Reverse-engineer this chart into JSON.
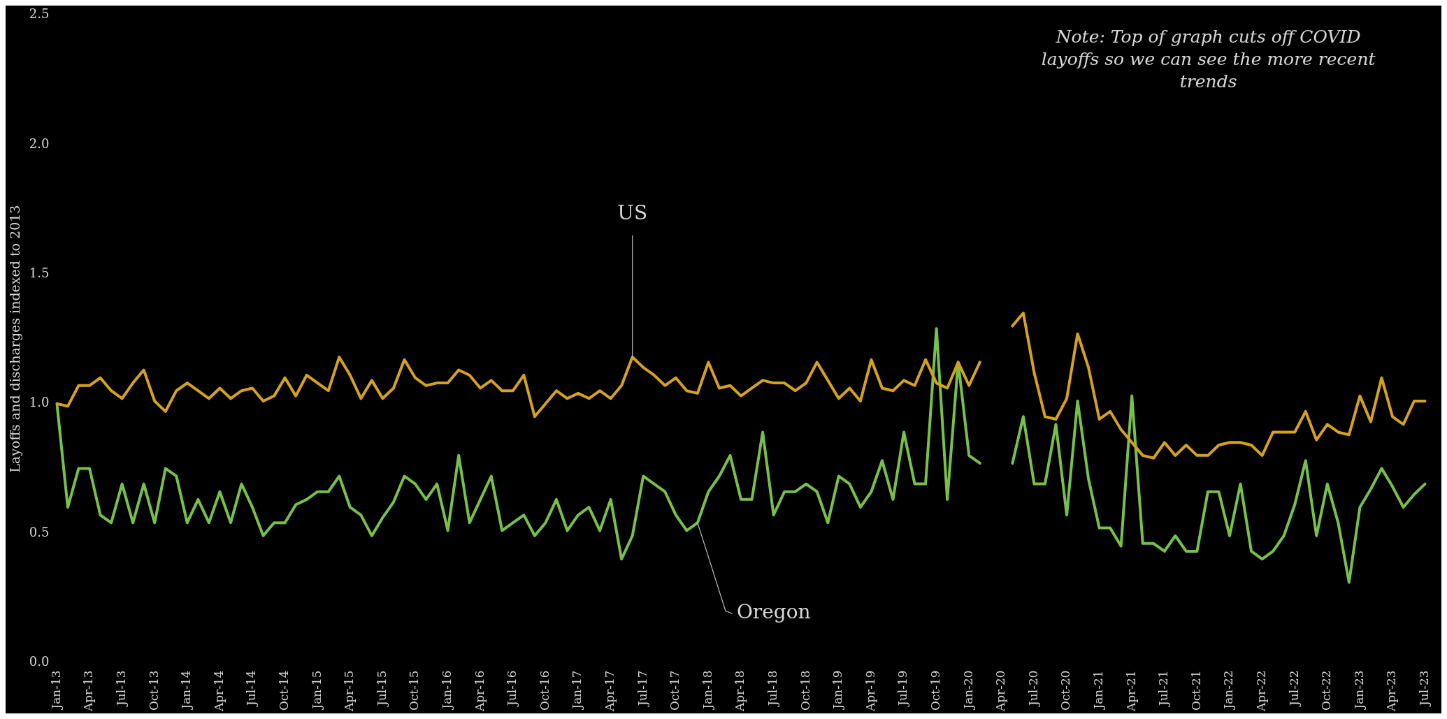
{
  "chart_data": {
    "type": "line",
    "ylabel": "Layoffs and discharges indexed to 2013",
    "annotations": [
      "Note: Top of graph cuts off COVID layoffs so we can see the more recent trends"
    ],
    "categories": [
      "Jan-13",
      null,
      null,
      "Apr-13",
      null,
      null,
      "Jul-13",
      null,
      null,
      "Oct-13",
      null,
      null,
      "Jan-14",
      null,
      null,
      "Apr-14",
      null,
      null,
      "Jul-14",
      null,
      null,
      "Oct-14",
      null,
      null,
      "Jan-15",
      null,
      null,
      "Apr-15",
      null,
      null,
      "Jul-15",
      null,
      null,
      "Oct-15",
      null,
      null,
      "Jan-16",
      null,
      null,
      "Apr-16",
      null,
      null,
      "Jul-16",
      null,
      null,
      "Oct-16",
      null,
      null,
      "Jan-17",
      null,
      null,
      "Apr-17",
      null,
      null,
      "Jul-17",
      null,
      null,
      "Oct-17",
      null,
      null,
      "Jan-18",
      null,
      null,
      "Apr-18",
      null,
      null,
      "Jul-18",
      null,
      null,
      "Oct-18",
      null,
      null,
      "Jan-19",
      null,
      null,
      "Apr-19",
      null,
      null,
      "Jul-19",
      null,
      null,
      "Oct-19",
      null,
      null,
      "Jan-20",
      null,
      null,
      "Apr-20",
      null,
      null,
      "Jul-20",
      null,
      null,
      "Oct-20",
      null,
      null,
      "Jan-21",
      null,
      null,
      "Apr-21",
      null,
      null,
      "Jul-21",
      null,
      null,
      "Oct-21",
      null,
      null,
      "Jan-22",
      null,
      null,
      "Apr-22",
      null,
      null,
      "Jul-22",
      null,
      null,
      "Oct-22",
      null,
      null,
      "Jan-23",
      null,
      null,
      "Apr-23",
      null,
      null,
      "Jul-23"
    ],
    "series": [
      {
        "name": "US",
        "color": "#d6a21e",
        "values": [
          1.0,
          0.99,
          1.07,
          1.07,
          1.1,
          1.05,
          1.02,
          1.08,
          1.13,
          1.01,
          0.97,
          1.05,
          1.08,
          1.05,
          1.02,
          1.06,
          1.02,
          1.05,
          1.06,
          1.01,
          1.03,
          1.1,
          1.03,
          1.11,
          1.08,
          1.05,
          1.18,
          1.11,
          1.02,
          1.09,
          1.02,
          1.06,
          1.17,
          1.1,
          1.07,
          1.08,
          1.08,
          1.13,
          1.11,
          1.06,
          1.09,
          1.05,
          1.05,
          1.11,
          0.95,
          1.0,
          1.05,
          1.02,
          1.04,
          1.02,
          1.05,
          1.02,
          1.07,
          1.18,
          1.14,
          1.11,
          1.07,
          1.1,
          1.05,
          1.04,
          1.16,
          1.06,
          1.07,
          1.03,
          1.06,
          1.09,
          1.08,
          1.08,
          1.05,
          1.08,
          1.16,
          1.09,
          1.02,
          1.06,
          1.01,
          1.17,
          1.06,
          1.05,
          1.09,
          1.07,
          1.17,
          1.08,
          1.06,
          1.16,
          1.07,
          1.16,
          null,
          null,
          1.3,
          1.35,
          1.12,
          0.95,
          0.94,
          1.02,
          1.27,
          1.14,
          0.94,
          0.97,
          0.9,
          0.85,
          0.8,
          0.79,
          0.85,
          0.8,
          0.84,
          0.8,
          0.8,
          0.84,
          0.85,
          0.85,
          0.84,
          0.8,
          0.89,
          0.89,
          0.89,
          0.97,
          0.86,
          0.92,
          0.89,
          0.88,
          1.03,
          0.93,
          1.1,
          0.95,
          0.92,
          1.01,
          1.01
        ]
      },
      {
        "name": "Oregon",
        "color": "#78c04a",
        "values": [
          1.0,
          0.6,
          0.75,
          0.75,
          0.57,
          0.54,
          0.69,
          0.54,
          0.69,
          0.54,
          0.75,
          0.72,
          0.54,
          0.63,
          0.54,
          0.66,
          0.54,
          0.69,
          0.6,
          0.49,
          0.54,
          0.54,
          0.61,
          0.63,
          0.66,
          0.66,
          0.72,
          0.6,
          0.57,
          0.49,
          0.56,
          0.62,
          0.72,
          0.69,
          0.63,
          0.69,
          0.51,
          0.8,
          0.54,
          0.63,
          0.72,
          0.51,
          0.54,
          0.57,
          0.49,
          0.54,
          0.63,
          0.51,
          0.57,
          0.6,
          0.51,
          0.63,
          0.4,
          0.49,
          0.72,
          0.69,
          0.66,
          0.57,
          0.51,
          0.54,
          0.66,
          0.72,
          0.8,
          0.63,
          0.63,
          0.89,
          0.57,
          0.66,
          0.66,
          0.69,
          0.66,
          0.54,
          0.72,
          0.69,
          0.6,
          0.66,
          0.78,
          0.63,
          0.89,
          0.69,
          0.69,
          1.29,
          0.63,
          1.16,
          0.8,
          0.77,
          null,
          null,
          0.77,
          0.95,
          0.69,
          0.69,
          0.92,
          0.57,
          1.01,
          0.71,
          0.52,
          0.52,
          0.45,
          1.03,
          0.46,
          0.46,
          0.43,
          0.49,
          0.43,
          0.43,
          0.66,
          0.66,
          0.49,
          0.69,
          0.43,
          0.4,
          0.43,
          0.49,
          0.61,
          0.78,
          0.49,
          0.69,
          0.54,
          0.31,
          0.6,
          0.67,
          0.75,
          0.68,
          0.6,
          0.65,
          0.69
        ]
      }
    ],
    "ylim": [
      0,
      2.5
    ],
    "yticks": [
      {
        "value": 0,
        "label": "0.0"
      },
      {
        "value": 0.5,
        "label": "0.5"
      },
      {
        "value": 1,
        "label": "1.0"
      },
      {
        "value": 1.5,
        "label": "1.5"
      },
      {
        "value": 2,
        "label": "2.0"
      },
      {
        "value": 2.5,
        "label": "2.5"
      }
    ],
    "grid": false,
    "legend": false,
    "marker": "none",
    "line_style": "solid"
  }
}
